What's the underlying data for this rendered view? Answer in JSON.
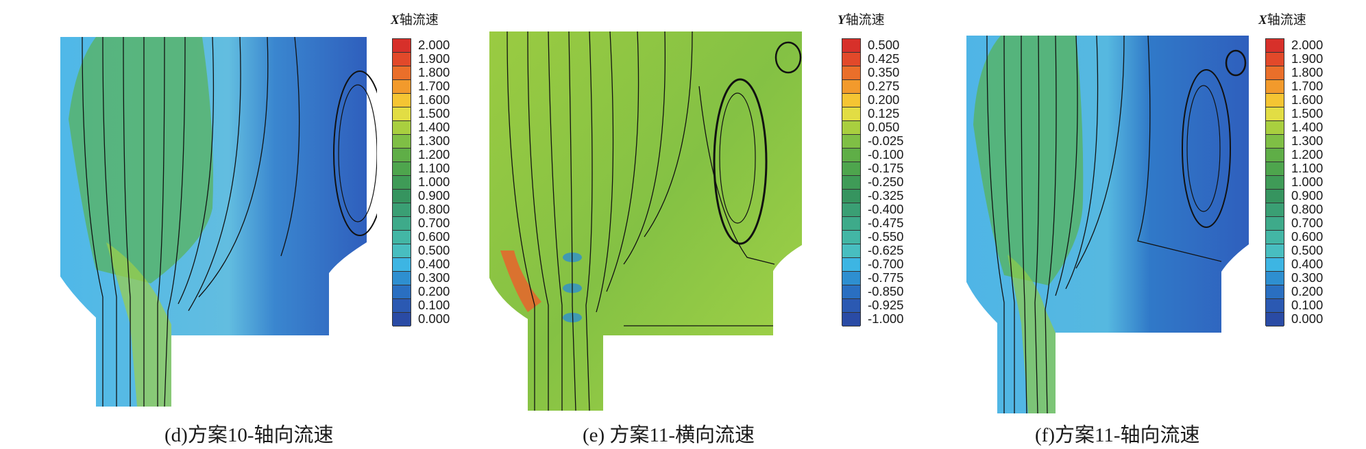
{
  "panels": [
    {
      "id": "d",
      "legend_axis": "X",
      "legend_suffix": "轴流速",
      "caption": "(d)方案10-轴向流速",
      "scale": [
        "2.000",
        "1.900",
        "1.800",
        "1.700",
        "1.600",
        "1.500",
        "1.400",
        "1.300",
        "1.200",
        "1.100",
        "1.000",
        "0.900",
        "0.800",
        "0.700",
        "0.600",
        "0.500",
        "0.400",
        "0.300",
        "0.200",
        "0.100",
        "0.000"
      ],
      "colors": [
        "#d7302a",
        "#e2492a",
        "#ea6f2a",
        "#f29a2c",
        "#f5c533",
        "#e2dd44",
        "#a9cf3f",
        "#7fbf45",
        "#5fae47",
        "#4ea54d",
        "#3f9b57",
        "#36945f",
        "#3a9f74",
        "#3eaa8a",
        "#43b6a5",
        "#48bec0",
        "#3db5e3",
        "#2e8fd0",
        "#2a6fc1",
        "#2b59b2",
        "#2a4ba5"
      ],
      "field": {
        "base": "#2f63c0",
        "light": "#52b8e6",
        "mid": "#58b55a",
        "hot": "#9ed04b"
      }
    },
    {
      "id": "e",
      "legend_axis": "Y",
      "legend_suffix": "轴流速",
      "caption": "(e) 方案11-横向流速",
      "scale": [
        "0.500",
        "0.425",
        "0.350",
        "0.275",
        "0.200",
        "0.125",
        "0.050",
        "-0.025",
        "-0.100",
        "-0.175",
        "-0.250",
        "-0.325",
        "-0.400",
        "-0.475",
        "-0.550",
        "-0.625",
        "-0.700",
        "-0.775",
        "-0.850",
        "-0.925",
        "-1.000"
      ],
      "colors": [
        "#d7302a",
        "#e2492a",
        "#ea6f2a",
        "#f29a2c",
        "#f5c533",
        "#e2dd44",
        "#a9cf3f",
        "#7fbf45",
        "#5fae47",
        "#4ea54d",
        "#3f9b57",
        "#36945f",
        "#3a9f74",
        "#3eaa8a",
        "#43b6a5",
        "#48bec0",
        "#3db5e3",
        "#2e8fd0",
        "#2a6fc1",
        "#2b59b2",
        "#2a4ba5"
      ],
      "field": {
        "base": "#8cc63f",
        "light": "#b4d84a",
        "mid": "#7dbb45",
        "hot": "#e8642c"
      }
    },
    {
      "id": "f",
      "legend_axis": "X",
      "legend_suffix": "轴流速",
      "caption": "(f)方案11-轴向流速",
      "scale": [
        "2.000",
        "1.900",
        "1.800",
        "1.700",
        "1.600",
        "1.500",
        "1.400",
        "1.300",
        "1.200",
        "1.100",
        "1.000",
        "0.900",
        "0.800",
        "0.700",
        "0.600",
        "0.500",
        "0.400",
        "0.300",
        "0.200",
        "0.100",
        "0.000"
      ],
      "colors": [
        "#d7302a",
        "#e2492a",
        "#ea6f2a",
        "#f29a2c",
        "#f5c533",
        "#e2dd44",
        "#a9cf3f",
        "#7fbf45",
        "#5fae47",
        "#4ea54d",
        "#3f9b57",
        "#36945f",
        "#3a9f74",
        "#3eaa8a",
        "#43b6a5",
        "#48bec0",
        "#3db5e3",
        "#2e8fd0",
        "#2a6fc1",
        "#2b59b2",
        "#2a4ba5"
      ],
      "field": {
        "base": "#2f5fbd",
        "light": "#4fb2e4",
        "mid": "#57b35a",
        "hot": "#8fcb48"
      }
    }
  ]
}
